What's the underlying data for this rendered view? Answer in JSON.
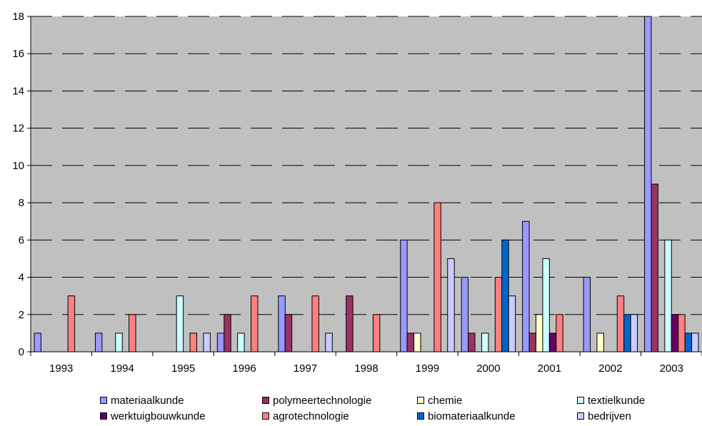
{
  "chart_data": {
    "type": "bar",
    "title": "",
    "xlabel": "",
    "ylabel": "",
    "ylim": [
      0,
      18
    ],
    "yticks": [
      0,
      2,
      4,
      6,
      8,
      10,
      12,
      14,
      16,
      18
    ],
    "grid": true,
    "legend_position": "bottom",
    "plot_background": "#c0c0c0",
    "categories": [
      "1993",
      "1994",
      "1995",
      "1996",
      "1997",
      "1998",
      "1999",
      "2000",
      "2001",
      "2002",
      "2003"
    ],
    "series": [
      {
        "name": "materiaalkunde",
        "color": "#9999ff",
        "values": [
          1,
          1,
          0,
          1,
          3,
          0,
          6,
          4,
          7,
          4,
          18
        ]
      },
      {
        "name": "polymeertechnologie",
        "color": "#993366",
        "values": [
          0,
          0,
          0,
          2,
          2,
          3,
          1,
          1,
          1,
          0,
          9
        ]
      },
      {
        "name": "chemie",
        "color": "#ffffcc",
        "values": [
          0,
          0,
          0,
          0,
          0,
          0,
          1,
          0,
          2,
          1,
          0
        ]
      },
      {
        "name": "textielkunde",
        "color": "#ccffff",
        "values": [
          0,
          1,
          3,
          1,
          0,
          0,
          0,
          1,
          5,
          0,
          6
        ]
      },
      {
        "name": "werktuigbouwkunde",
        "color": "#660066",
        "values": [
          0,
          0,
          0,
          0,
          0,
          0,
          0,
          0,
          1,
          0,
          2
        ]
      },
      {
        "name": "agrotechnologie",
        "color": "#ff8080",
        "values": [
          3,
          2,
          1,
          3,
          3,
          2,
          8,
          4,
          2,
          3,
          2
        ]
      },
      {
        "name": "biomateriaalkunde",
        "color": "#0066cc",
        "values": [
          0,
          0,
          0,
          0,
          0,
          0,
          0,
          6,
          0,
          2,
          1
        ]
      },
      {
        "name": "bedrijven",
        "color": "#ccccff",
        "values": [
          0,
          0,
          1,
          0,
          1,
          0,
          5,
          3,
          0,
          2,
          1
        ]
      }
    ]
  }
}
